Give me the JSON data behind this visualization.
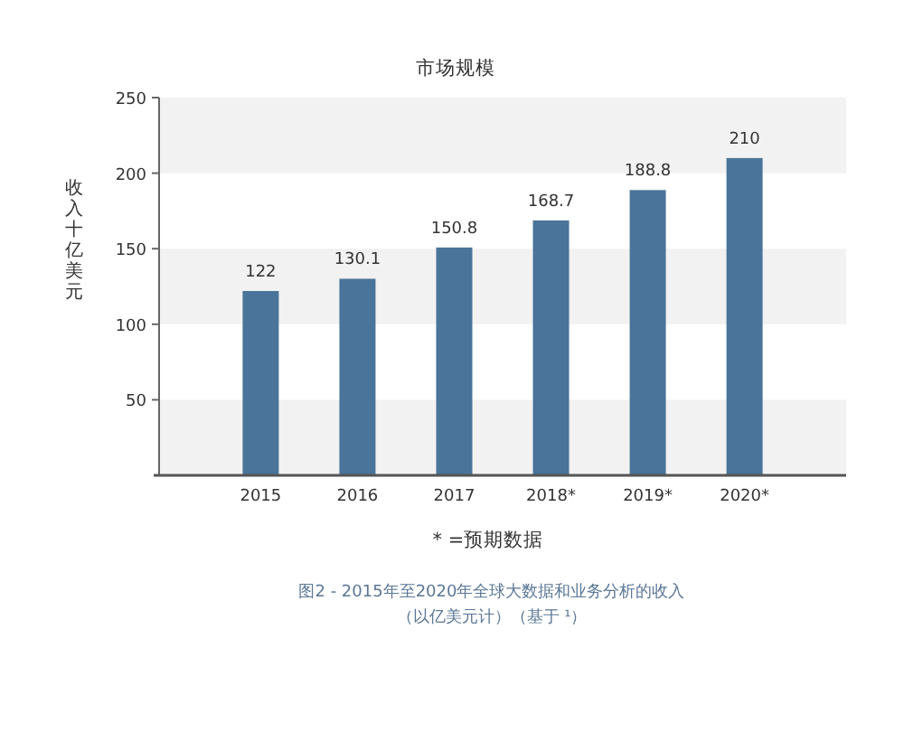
{
  "chart_data": {
    "type": "bar",
    "title": "市场规模",
    "ylabel": "收入十亿美元",
    "categories": [
      "2015",
      "2016",
      "2017",
      "2018*",
      "2019*",
      "2020*"
    ],
    "values": [
      122,
      130.1,
      150.8,
      168.7,
      188.8,
      210
    ],
    "color": "#4a7499",
    "ylim": [
      0,
      250
    ],
    "yticks": [
      50,
      100,
      150,
      200,
      250
    ],
    "data_labels": true,
    "bands": [
      {
        "axis": "y",
        "from": 0,
        "to": 50,
        "color": "#f2f2f2"
      },
      {
        "axis": "y",
        "from": 100,
        "to": 150,
        "color": "#f2f2f2"
      },
      {
        "axis": "y",
        "from": 200,
        "to": 250,
        "color": "#f2f2f2"
      }
    ],
    "annotations": [
      "* =预期数据",
      "图2 - 2015年至2020年全球大数据和业务分析的收入",
      "（以亿美元计）（基于 ¹）"
    ]
  }
}
